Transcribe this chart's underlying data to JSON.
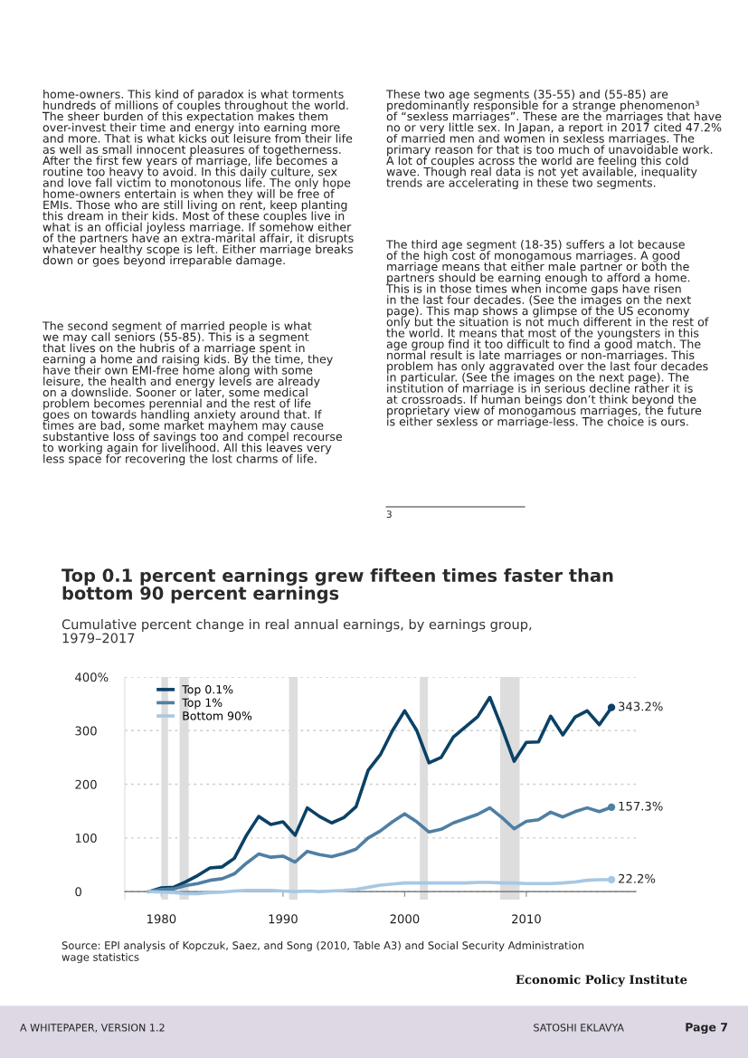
{
  "chart_data": {
    "type": "line",
    "title": "Top 0.1 percent earnings grew fifteen times faster than\nbottom 90 percent earnings",
    "subtitle": "Cumulative percent change in real annual earnings, by earnings group,\n1979–2017",
    "x": [
      1979,
      1980,
      1981,
      1982,
      1983,
      1984,
      1985,
      1986,
      1987,
      1988,
      1989,
      1990,
      1991,
      1992,
      1993,
      1994,
      1995,
      1996,
      1997,
      1998,
      1999,
      2000,
      2001,
      2002,
      2003,
      2004,
      2005,
      2006,
      2007,
      2008,
      2009,
      2010,
      2011,
      2012,
      2013,
      2014,
      2015,
      2016,
      2017
    ],
    "series": [
      {
        "name": "Top 0.1%",
        "color": "#0b4166",
        "values": [
          0,
          7,
          8,
          18,
          30,
          44,
          46,
          62,
          105,
          140,
          125,
          130,
          105,
          156,
          140,
          128,
          138,
          158,
          226,
          255,
          300,
          337,
          300,
          240,
          250,
          288,
          307,
          326,
          362,
          305,
          243,
          278,
          279,
          327,
          292,
          325,
          337,
          311,
          343.2
        ],
        "value_labels": [
          null,
          null,
          null,
          null,
          null,
          null,
          null,
          null,
          null,
          null,
          null,
          null,
          null,
          null,
          null,
          null,
          null,
          null,
          null,
          null,
          null,
          null,
          null,
          null,
          null,
          null,
          null,
          null,
          null,
          null,
          null,
          null,
          null,
          null,
          null,
          null,
          null,
          null,
          "343.2%"
        ]
      },
      {
        "name": "Top 1%",
        "color": "#4f7fa3",
        "values": [
          0,
          4,
          5,
          11,
          15,
          21,
          24,
          33,
          53,
          70,
          64,
          66,
          55,
          75,
          69,
          65,
          71,
          79,
          100,
          113,
          130,
          145,
          130,
          111,
          116,
          128,
          136,
          144,
          156,
          138,
          117,
          131,
          134,
          148,
          139,
          149,
          156,
          149,
          157.3
        ],
        "value_labels": [
          null,
          null,
          null,
          null,
          null,
          null,
          null,
          null,
          null,
          null,
          null,
          null,
          null,
          null,
          null,
          null,
          null,
          null,
          null,
          null,
          null,
          null,
          null,
          null,
          null,
          null,
          null,
          null,
          null,
          null,
          null,
          null,
          null,
          null,
          null,
          null,
          null,
          null,
          "157.3%"
        ]
      },
      {
        "name": "Bottom 90%",
        "color": "#a7c8e4",
        "values": [
          0,
          -1,
          -2,
          -4,
          -4,
          -2,
          -1,
          1,
          2,
          2,
          2,
          1,
          0,
          1,
          0,
          1,
          2,
          4,
          8,
          12,
          14,
          16,
          16,
          16,
          16,
          16,
          16,
          17,
          17,
          16,
          16,
          15,
          15,
          15,
          16,
          18,
          21,
          22,
          22.2
        ],
        "value_labels": [
          null,
          null,
          null,
          null,
          null,
          null,
          null,
          null,
          null,
          null,
          null,
          null,
          null,
          null,
          null,
          null,
          null,
          null,
          null,
          null,
          null,
          null,
          null,
          null,
          null,
          null,
          null,
          null,
          null,
          null,
          null,
          null,
          null,
          null,
          null,
          null,
          null,
          null,
          "22.2%"
        ]
      }
    ],
    "xlim": [
      1977,
      2019
    ],
    "xticks": [
      1980,
      1990,
      2000,
      2010
    ],
    "ylim": [
      -15,
      400
    ],
    "yticks": [
      0,
      100,
      200,
      300,
      {
        "value": 400,
        "label": "400%"
      }
    ],
    "grid": "y",
    "legend": "top left",
    "marker": "none",
    "line_style": "solid",
    "bands": [
      {
        "axis": "x",
        "from": 1980.0,
        "to": 1980.55,
        "color": "#dddddd"
      },
      {
        "axis": "x",
        "from": 1981.5,
        "to": 1982.25,
        "color": "#dddddd"
      },
      {
        "axis": "x",
        "from": 1990.5,
        "to": 1991.2,
        "color": "#dddddd"
      },
      {
        "axis": "x",
        "from": 2001.25,
        "to": 2001.9,
        "color": "#dddddd"
      },
      {
        "axis": "x",
        "from": 2007.85,
        "to": 2009.45,
        "color": "#dddddd"
      }
    ],
    "annotations": [
      "Source: EPI analysis of Kopczuk, Saez, and Song (2010, Table A3) and Social Security Administration\nwage statistics",
      "Economic Policy Institute",
      "home-owners. This kind of paradox is what torments\nhundreds of millions of couples throughout the world.\nThe sheer burden of this expectation makes them\nover-invest their time and energy into earning more\nand more. That is what kicks out leisure from their life\nas well as small innocent pleasures of togetherness.\nAfter the first few years of marriage, life becomes a\nroutine too heavy to avoid. In this daily culture, sex\nand love fall victim to monotonous life. The only hope\nhome-owners entertain is when they will be free of\nEMIs. Those who are still living on rent, keep planting\nthis dream in their kids. Most of these couples live in\nwhat is an official joyless marriage. If somehow either\nof the partners have an extra-marital affair, it disrupts\nwhatever healthy scope is left. Either marriage breaks\ndown or goes beyond irreparable damage.",
      "The second segment of married people is what\nwe may call seniors (55-85). This is a segment\nthat lives on the hubris of a marriage spent in\nearning a home and raising kids. By the time, they\nhave their own EMI-free home along with some\nleisure, the health and energy levels are already\non a downslide. Sooner or later, some medical\nproblem becomes perennial and the rest of life\ngoes on towards handling anxiety around that. If\ntimes are bad, some market mayhem may cause\nsubstantive loss of savings too and compel recourse\nto working again for livelihood. All this leaves very\nless space for recovering the lost charms of life.",
      "These two age segments (35-55) and (55-85) are\npredominantly responsible for a strange phenomenon³\nof “sexless marriages”. These are the marriages that have\nno or very little sex. In Japan, a report in 2017 cited 47.2%\nof married men and women in sexless marriages. The\nprimary reason for that is too much of unavoidable work.\nA lot of couples across the world are feeling this cold\nwave. Though real data is not yet available, inequality\ntrends are accelerating in these two segments.",
      "The third age segment (18-35) suffers a lot because\nof the high cost of monogamous marriages. A good\nmarriage means that either male partner or both the\npartners should be earning enough to afford a home.\nThis is in those times when income gaps have risen\nin the last four decades. (See the images on the next\npage). This map shows a glimpse of the US economy\nonly but the situation is not much different in the rest of\nthe world. It means that most of the youngsters in this\nage group find it too difficult to find a good match. The\nnormal result is late marriages or non-marriages. This\nproblem has only aggravated over the last four decades\nin particular. (See the images on the next page). The\ninstitution of marriage is in serious decline rather it is\nat crossroads. If human beings don’t think beyond the\nproprietary view of monogamous marriages, the future\nis either sexless or marriage-less. The choice is ours.",
      "3",
      "A WHITEPAPER, VERSION 1.2",
      "SATOSHI EKLAVYA",
      "Page 7"
    ]
  }
}
